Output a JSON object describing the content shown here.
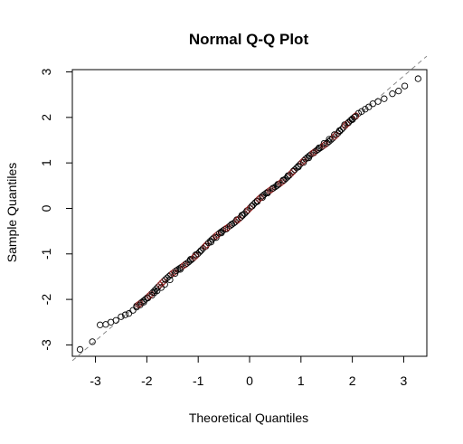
{
  "chart_data": {
    "type": "scatter",
    "title": "Normal Q-Q Plot",
    "xlabel": "Theoretical Quantiles",
    "ylabel": "Sample Quantiles",
    "xlim": [
      -3.45,
      3.45
    ],
    "ylim": [
      -3.25,
      3.05
    ],
    "xticks": [
      -3,
      -2,
      -1,
      0,
      1,
      2,
      3
    ],
    "yticks": [
      -3,
      -2,
      -1,
      0,
      1,
      2,
      3
    ],
    "tick_labels_x": [
      "-3",
      "-2",
      "-1",
      "0",
      "1",
      "2",
      "3"
    ],
    "tick_labels_y": [
      "-3",
      "-2",
      "-1",
      "0",
      "1",
      "2",
      "3"
    ],
    "grid": false,
    "marker": "open-circle",
    "reference_line": {
      "style": "dashed",
      "color": "#888888",
      "intercept": 0.0,
      "slope": 0.97
    },
    "points_color": "#000000",
    "fill_tint": "#8b1a1a",
    "points": [
      {
        "x": -3.3,
        "y": -3.1
      },
      {
        "x": -3.06,
        "y": -2.93
      },
      {
        "x": -2.91,
        "y": -2.56
      },
      {
        "x": -2.8,
        "y": -2.55
      },
      {
        "x": -2.7,
        "y": -2.5
      },
      {
        "x": -2.6,
        "y": -2.46
      },
      {
        "x": -2.5,
        "y": -2.38
      },
      {
        "x": -2.42,
        "y": -2.34
      },
      {
        "x": -2.35,
        "y": -2.31
      },
      {
        "x": -2.27,
        "y": -2.24
      },
      {
        "x": -2.2,
        "y": -2.17
      },
      {
        "x": -2.13,
        "y": -2.12
      },
      {
        "x": -2.06,
        "y": -2.06
      },
      {
        "x": -1.98,
        "y": -1.97
      },
      {
        "x": -1.9,
        "y": -1.91
      },
      {
        "x": -1.85,
        "y": -1.85
      },
      {
        "x": -1.8,
        "y": -1.81
      },
      {
        "x": -1.72,
        "y": -1.74
      },
      {
        "x": -1.65,
        "y": -1.67
      },
      {
        "x": -1.55,
        "y": -1.57
      },
      {
        "x": -1.45,
        "y": -1.43
      },
      {
        "x": -1.35,
        "y": -1.34
      },
      {
        "x": -1.25,
        "y": -1.23
      },
      {
        "x": -1.15,
        "y": -1.12
      },
      {
        "x": -1.05,
        "y": -1.02
      },
      {
        "x": -0.95,
        "y": -0.93
      },
      {
        "x": -0.85,
        "y": -0.83
      },
      {
        "x": -0.75,
        "y": -0.74
      },
      {
        "x": -0.65,
        "y": -0.64
      },
      {
        "x": -0.55,
        "y": -0.54
      },
      {
        "x": -0.45,
        "y": -0.45
      },
      {
        "x": -0.35,
        "y": -0.35
      },
      {
        "x": -0.25,
        "y": -0.25
      },
      {
        "x": -0.15,
        "y": -0.15
      },
      {
        "x": -0.05,
        "y": -0.05
      },
      {
        "x": 0.05,
        "y": 0.05
      },
      {
        "x": 0.15,
        "y": 0.15
      },
      {
        "x": 0.25,
        "y": 0.24
      },
      {
        "x": 0.35,
        "y": 0.34
      },
      {
        "x": 0.45,
        "y": 0.44
      },
      {
        "x": 0.55,
        "y": 0.53
      },
      {
        "x": 0.65,
        "y": 0.62
      },
      {
        "x": 0.75,
        "y": 0.72
      },
      {
        "x": 0.85,
        "y": 0.82
      },
      {
        "x": 0.95,
        "y": 0.91
      },
      {
        "x": 1.05,
        "y": 1.01
      },
      {
        "x": 1.15,
        "y": 1.11
      },
      {
        "x": 1.25,
        "y": 1.22
      },
      {
        "x": 1.35,
        "y": 1.33
      },
      {
        "x": 1.45,
        "y": 1.43
      },
      {
        "x": 1.55,
        "y": 1.52
      },
      {
        "x": 1.65,
        "y": 1.62
      },
      {
        "x": 1.75,
        "y": 1.71
      },
      {
        "x": 1.85,
        "y": 1.84
      },
      {
        "x": 1.92,
        "y": 1.88
      },
      {
        "x": 2.0,
        "y": 1.95
      },
      {
        "x": 2.06,
        "y": 2.02
      },
      {
        "x": 2.12,
        "y": 2.09
      },
      {
        "x": 2.18,
        "y": 2.13
      },
      {
        "x": 2.25,
        "y": 2.18
      },
      {
        "x": 2.32,
        "y": 2.23
      },
      {
        "x": 2.4,
        "y": 2.3
      },
      {
        "x": 2.5,
        "y": 2.35
      },
      {
        "x": 2.62,
        "y": 2.41
      },
      {
        "x": 2.78,
        "y": 2.52
      },
      {
        "x": 2.9,
        "y": 2.58
      },
      {
        "x": 3.02,
        "y": 2.69
      },
      {
        "x": 3.28,
        "y": 2.85
      }
    ]
  }
}
